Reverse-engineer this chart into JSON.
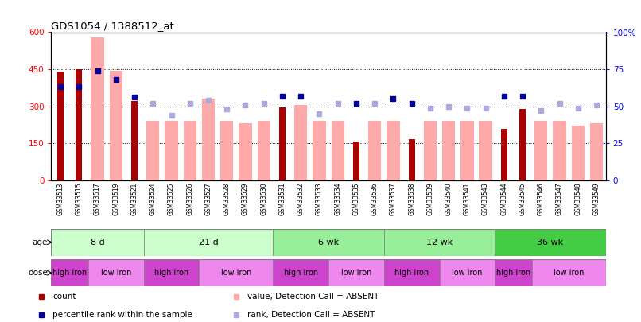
{
  "title": "GDS1054 / 1388512_at",
  "samples": [
    "GSM33513",
    "GSM33515",
    "GSM33517",
    "GSM33519",
    "GSM33521",
    "GSM33524",
    "GSM33525",
    "GSM33526",
    "GSM33527",
    "GSM33528",
    "GSM33529",
    "GSM33530",
    "GSM33531",
    "GSM33532",
    "GSM33533",
    "GSM33534",
    "GSM33535",
    "GSM33536",
    "GSM33537",
    "GSM33538",
    "GSM33539",
    "GSM33540",
    "GSM33541",
    "GSM33543",
    "GSM33544",
    "GSM33545",
    "GSM33546",
    "GSM33547",
    "GSM33548",
    "GSM33549"
  ],
  "count_values": [
    440,
    450,
    null,
    null,
    320,
    null,
    null,
    null,
    null,
    null,
    null,
    null,
    295,
    null,
    null,
    null,
    158,
    null,
    null,
    168,
    null,
    null,
    null,
    null,
    210,
    290,
    null,
    null,
    null,
    null
  ],
  "absent_value_values": [
    null,
    null,
    580,
    445,
    null,
    240,
    240,
    240,
    330,
    240,
    230,
    240,
    null,
    305,
    240,
    240,
    null,
    240,
    240,
    null,
    240,
    240,
    240,
    240,
    null,
    null,
    240,
    240,
    220,
    230
  ],
  "percentile_rank_pct": [
    63,
    63,
    74,
    68,
    56,
    null,
    null,
    null,
    null,
    null,
    null,
    null,
    57,
    57,
    null,
    null,
    52,
    null,
    55,
    52,
    null,
    null,
    null,
    null,
    57,
    57,
    null,
    null,
    null,
    null
  ],
  "absent_rank_pct": [
    null,
    null,
    null,
    null,
    null,
    52,
    44,
    52,
    54,
    48,
    51,
    52,
    null,
    null,
    45,
    52,
    null,
    52,
    null,
    null,
    49,
    50,
    49,
    49,
    null,
    null,
    47,
    52,
    49,
    51
  ],
  "age_groups": [
    {
      "label": "8 d",
      "start": 0,
      "end": 4,
      "color": "#ccffcc"
    },
    {
      "label": "21 d",
      "start": 5,
      "end": 11,
      "color": "#ccffcc"
    },
    {
      "label": "6 wk",
      "start": 12,
      "end": 17,
      "color": "#99ee99"
    },
    {
      "label": "12 wk",
      "start": 18,
      "end": 23,
      "color": "#99ee99"
    },
    {
      "label": "36 wk",
      "start": 24,
      "end": 29,
      "color": "#44cc44"
    }
  ],
  "dose_groups": [
    {
      "label": "high iron",
      "start": 0,
      "end": 1,
      "color": "#cc44cc"
    },
    {
      "label": "low iron",
      "start": 2,
      "end": 4,
      "color": "#ee88ee"
    },
    {
      "label": "high iron",
      "start": 5,
      "end": 7,
      "color": "#cc44cc"
    },
    {
      "label": "low iron",
      "start": 8,
      "end": 11,
      "color": "#ee88ee"
    },
    {
      "label": "high iron",
      "start": 12,
      "end": 14,
      "color": "#cc44cc"
    },
    {
      "label": "low iron",
      "start": 15,
      "end": 17,
      "color": "#ee88ee"
    },
    {
      "label": "high iron",
      "start": 18,
      "end": 20,
      "color": "#cc44cc"
    },
    {
      "label": "low iron",
      "start": 21,
      "end": 23,
      "color": "#ee88ee"
    },
    {
      "label": "high iron",
      "start": 24,
      "end": 25,
      "color": "#cc44cc"
    },
    {
      "label": "low iron",
      "start": 26,
      "end": 29,
      "color": "#ee88ee"
    }
  ],
  "ylim": [
    0,
    600
  ],
  "y2lim": [
    0,
    100
  ],
  "yticks": [
    0,
    150,
    300,
    450,
    600
  ],
  "y2ticks": [
    0,
    25,
    50,
    75,
    100
  ],
  "count_color": "#aa0000",
  "absent_value_color": "#ffaaaa",
  "percentile_color": "#000099",
  "absent_rank_color": "#aaaadd",
  "background_color": "#ffffff"
}
